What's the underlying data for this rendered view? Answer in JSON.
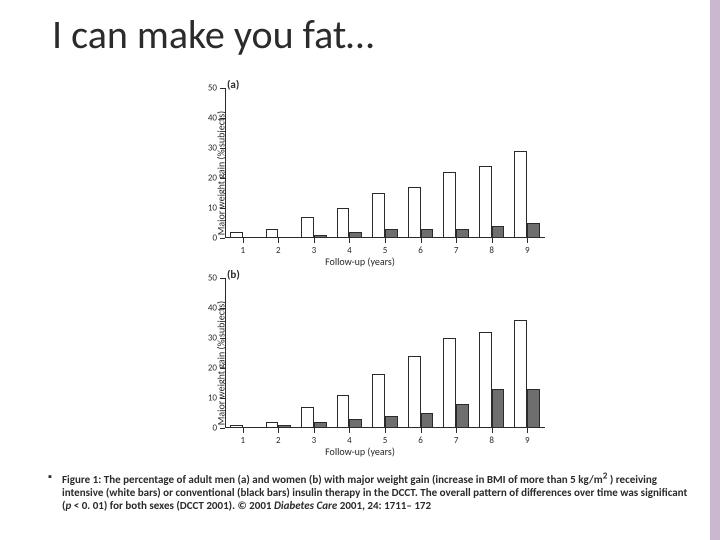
{
  "title": "I can make you fat…",
  "charts": {
    "y_label": "Major weight gain (% subjects)",
    "x_label": "Follow-up (years)",
    "ylim": [
      0,
      50
    ],
    "ytick_step": 10,
    "x_categories": [
      1,
      2,
      3,
      4,
      5,
      6,
      7,
      8,
      9
    ],
    "bar_colors": {
      "intensive": "#ffffff",
      "conventional": "#6e6e6e"
    },
    "bar_border": "#2b2b2b",
    "bar_group_width": 0.72,
    "axis_color": "#2b2b2b",
    "background_color": "#ffffff",
    "label_fontsize": 10,
    "tick_fontsize": 9,
    "panels": [
      {
        "key": "a",
        "label": "(a)",
        "series": {
          "intensive": [
            2,
            3,
            7,
            10,
            15,
            17,
            22,
            24,
            29
          ],
          "conventional": [
            0,
            0,
            1,
            2,
            3,
            3,
            3,
            4,
            5
          ]
        }
      },
      {
        "key": "b",
        "label": "(b)",
        "series": {
          "intensive": [
            1,
            2,
            7,
            11,
            18,
            24,
            30,
            32,
            36
          ],
          "conventional": [
            0,
            1,
            2,
            3,
            4,
            5,
            8,
            13,
            13
          ]
        }
      }
    ]
  },
  "caption": {
    "prefix": "Figure 1: The percentage of adult men (a) and women (b) with major weight gain (increase in BMI of more than 5 kg/m",
    "sup": "2",
    "mid": " ) receiving intensive (white bars) or conventional (black bars) insulin therapy in the DCCT. The overall pattern of differences over time was significant (",
    "p_italic": "p",
    "after_p": " < 0. 01) for both sexes (DCCT 2001). © 2001 ",
    "journal_italic": "Diabetes Care",
    "tail": " 2001, 24: 1711– 172"
  },
  "accent_color": "#c9b8cf"
}
